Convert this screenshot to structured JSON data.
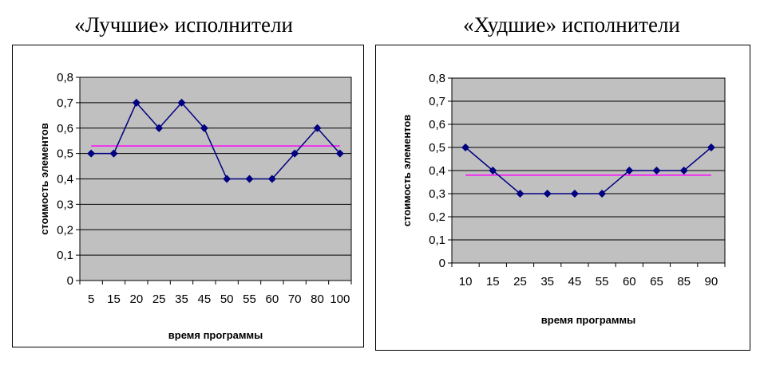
{
  "chart_data": [
    {
      "type": "line",
      "title": "«Лучшие» исполнители",
      "xlabel": "время программы",
      "ylabel": "стоимость элементов",
      "categories": [
        "5",
        "15",
        "20",
        "25",
        "35",
        "45",
        "50",
        "55",
        "60",
        "70",
        "80",
        "100"
      ],
      "y_tick_labels": [
        "0",
        "0,1",
        "0,2",
        "0,3",
        "0,4",
        "0,5",
        "0,6",
        "0,7",
        "0,8"
      ],
      "ylim": [
        0,
        0.8
      ],
      "grid": true,
      "series": [
        {
          "values": [
            0.5,
            0.5,
            0.7,
            0.6,
            0.7,
            0.6,
            0.4,
            0.4,
            0.4,
            0.5,
            0.6,
            0.5
          ],
          "color": "#000080",
          "marker": "diamond"
        }
      ],
      "mean_line": {
        "value": 0.53,
        "color": "#ff00ff"
      }
    },
    {
      "type": "line",
      "title": "«Худшие» исполнители",
      "xlabel": "время программы",
      "ylabel": "стоимость элементов",
      "categories": [
        "10",
        "15",
        "25",
        "35",
        "45",
        "55",
        "60",
        "65",
        "85",
        "90"
      ],
      "y_tick_labels": [
        "0",
        "0,1",
        "0,2",
        "0,3",
        "0,4",
        "0,5",
        "0,6",
        "0,7",
        "0,8"
      ],
      "ylim": [
        0,
        0.8
      ],
      "grid": true,
      "series": [
        {
          "values": [
            0.5,
            0.4,
            0.3,
            0.3,
            0.3,
            0.3,
            0.4,
            0.4,
            0.4,
            0.5
          ],
          "color": "#000080",
          "marker": "diamond"
        }
      ],
      "mean_line": {
        "value": 0.38,
        "color": "#ff00ff"
      }
    }
  ],
  "colors": {
    "plot_background": "#c0c0c0",
    "grid": "#000000",
    "frame": "#000000"
  }
}
